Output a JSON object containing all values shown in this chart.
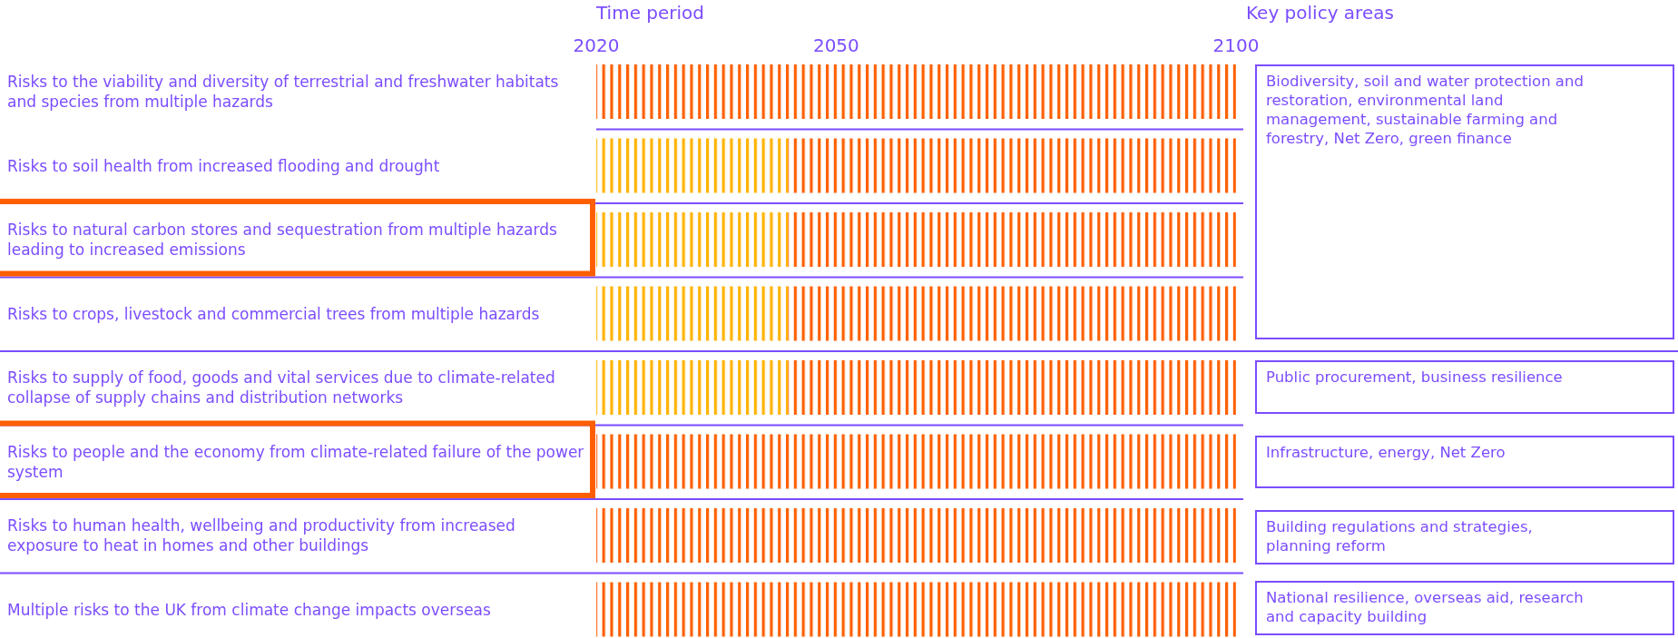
{
  "chart_data": {
    "type": "bar",
    "orientation": "horizontal",
    "xlabel": "Time period",
    "categories": [
      "Risks to the viability and diversity of terrestrial and freshwater habitats and species from multiple hazards",
      "Risks to soil health from increased flooding and drought",
      "Risks to natural carbon stores and sequestration from multiple hazards leading to increased emissions",
      "Risks to crops, livestock and commercial trees from multiple hazards",
      "Risks to supply of food, goods and vital services due to climate-related collapse of supply chains and distribution networks",
      "Risks to people and the economy from climate-related failure of the power system",
      "Risks to human health, wellbeing and productivity from increased exposure to heat in homes and other buildings",
      "Multiple risks to the UK from climate change impacts overseas"
    ],
    "series": [
      {
        "color": "#ffb300",
        "base": [
          null,
          2020,
          2020,
          2020,
          2020,
          null,
          null,
          null
        ],
        "values": [
          null,
          24,
          24,
          24,
          24,
          null,
          null,
          null
        ]
      },
      {
        "color": "#ff5f00",
        "base": [
          2020,
          2044,
          2044,
          2044,
          2044,
          2020,
          2020,
          2020
        ],
        "values": [
          80,
          56,
          56,
          56,
          56,
          80,
          80,
          80
        ]
      }
    ],
    "xlim": [
      2020,
      2100
    ],
    "xticks": [
      2020,
      2050,
      2100
    ],
    "annotations": [
      "Key policy areas",
      "Biodiversity, soil and water protection and restoration, environmental land management, sustainable farming and forestry, Net Zero, green finance",
      "Public procurement, business resilience",
      "Infrastructure, energy, Net Zero",
      "Building regulations and strategies, planning reform",
      "National resilience, overseas aid, research and capacity building"
    ]
  }
}
